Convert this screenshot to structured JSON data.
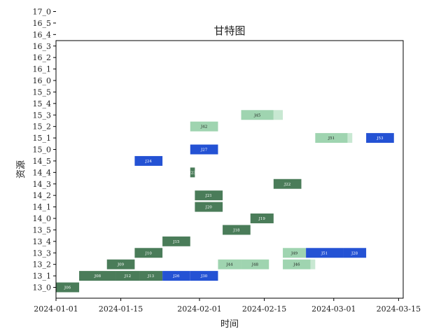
{
  "chart_data": {
    "type": "gantt",
    "title": "甘特图",
    "xlabel": "时间",
    "ylabel": "资源",
    "xlim": [
      "2024-01-01",
      "2024-03-16"
    ],
    "x_ticks": [
      "2024-01-01",
      "2024-01-15",
      "2024-02-01",
      "2024-02-15",
      "2024-03-01",
      "2024-03-15"
    ],
    "resources": [
      "13_0",
      "13_1",
      "13_2",
      "13_3",
      "13_4",
      "13_5",
      "14_0",
      "14_1",
      "14_2",
      "14_3",
      "14_4",
      "14_5",
      "15_0",
      "15_1",
      "15_2",
      "15_3",
      "15_4",
      "15_5",
      "16_0",
      "16_1",
      "16_2",
      "16_3",
      "16_4",
      "16_5",
      "17_0"
    ],
    "colors": {
      "dark_green": "#4a7c59",
      "light_green": "#9fd4b0",
      "pale_green": "#c8e8d2",
      "blue": "#2452d4"
    },
    "tasks": [
      {
        "label": "J06",
        "resource": "13_0",
        "start": "2024-01-01",
        "end": "2024-01-06",
        "color": "dark_green"
      },
      {
        "label": "J08",
        "resource": "13_1",
        "start": "2024-01-06",
        "end": "2024-01-14",
        "color": "dark_green"
      },
      {
        "label": "J12",
        "resource": "13_1",
        "start": "2024-01-14",
        "end": "2024-01-19",
        "color": "dark_green"
      },
      {
        "label": "J13",
        "resource": "13_1",
        "start": "2024-01-19",
        "end": "2024-01-24",
        "color": "dark_green"
      },
      {
        "label": "J26",
        "resource": "13_1",
        "start": "2024-01-24",
        "end": "2024-01-30",
        "color": "blue"
      },
      {
        "label": "J30",
        "resource": "13_1",
        "start": "2024-01-30",
        "end": "2024-02-05",
        "color": "blue"
      },
      {
        "label": "J09",
        "resource": "13_2",
        "start": "2024-01-12",
        "end": "2024-01-18",
        "color": "dark_green"
      },
      {
        "label": "J44",
        "resource": "13_2",
        "start": "2024-02-05",
        "end": "2024-02-10",
        "color": "light_green"
      },
      {
        "label": "J48",
        "resource": "13_2",
        "start": "2024-02-10",
        "end": "2024-02-16",
        "color": "light_green"
      },
      {
        "label": "J46",
        "resource": "13_2",
        "start": "2024-02-19",
        "end": "2024-02-25",
        "color": "light_green"
      },
      {
        "label": "",
        "resource": "13_2",
        "start": "2024-02-25",
        "end": "2024-02-26",
        "color": "pale_green"
      },
      {
        "label": "J10",
        "resource": "13_3",
        "start": "2024-01-18",
        "end": "2024-01-24",
        "color": "dark_green"
      },
      {
        "label": "J49",
        "resource": "13_3",
        "start": "2024-02-19",
        "end": "2024-02-24",
        "color": "light_green"
      },
      {
        "label": "J51",
        "resource": "13_3",
        "start": "2024-02-24",
        "end": "2024-03-03",
        "color": "blue"
      },
      {
        "label": "J28",
        "resource": "13_3",
        "start": "2024-03-03",
        "end": "2024-03-08",
        "color": "blue"
      },
      {
        "label": "J15",
        "resource": "13_4",
        "start": "2024-01-24",
        "end": "2024-01-30",
        "color": "dark_green"
      },
      {
        "label": "J18",
        "resource": "13_5",
        "start": "2024-02-06",
        "end": "2024-02-12",
        "color": "dark_green"
      },
      {
        "label": "J19",
        "resource": "14_0",
        "start": "2024-02-12",
        "end": "2024-02-17",
        "color": "dark_green"
      },
      {
        "label": "J20",
        "resource": "14_1",
        "start": "2024-01-31",
        "end": "2024-02-06",
        "color": "dark_green"
      },
      {
        "label": "J21",
        "resource": "14_2",
        "start": "2024-01-31",
        "end": "2024-02-06",
        "color": "dark_green"
      },
      {
        "label": "J22",
        "resource": "14_3",
        "start": "2024-02-17",
        "end": "2024-02-23",
        "color": "dark_green"
      },
      {
        "label": "J23",
        "resource": "14_4",
        "start": "2024-01-30",
        "end": "2024-01-31",
        "color": "dark_green"
      },
      {
        "label": "J24",
        "resource": "14_5",
        "start": "2024-01-18",
        "end": "2024-01-24",
        "color": "blue"
      },
      {
        "label": "J27",
        "resource": "15_0",
        "start": "2024-01-30",
        "end": "2024-02-05",
        "color": "blue"
      },
      {
        "label": "J51",
        "resource": "15_1",
        "start": "2024-02-26",
        "end": "2024-03-04",
        "color": "light_green"
      },
      {
        "label": "",
        "resource": "15_1",
        "start": "2024-03-04",
        "end": "2024-03-05",
        "color": "pale_green"
      },
      {
        "label": "J53",
        "resource": "15_1",
        "start": "2024-03-08",
        "end": "2024-03-14",
        "color": "blue"
      },
      {
        "label": "J42",
        "resource": "15_2",
        "start": "2024-01-30",
        "end": "2024-02-05",
        "color": "light_green"
      },
      {
        "label": "J45",
        "resource": "15_3",
        "start": "2024-02-10",
        "end": "2024-02-17",
        "color": "light_green"
      },
      {
        "label": "",
        "resource": "15_3",
        "start": "2024-02-17",
        "end": "2024-02-19",
        "color": "pale_green"
      }
    ]
  }
}
